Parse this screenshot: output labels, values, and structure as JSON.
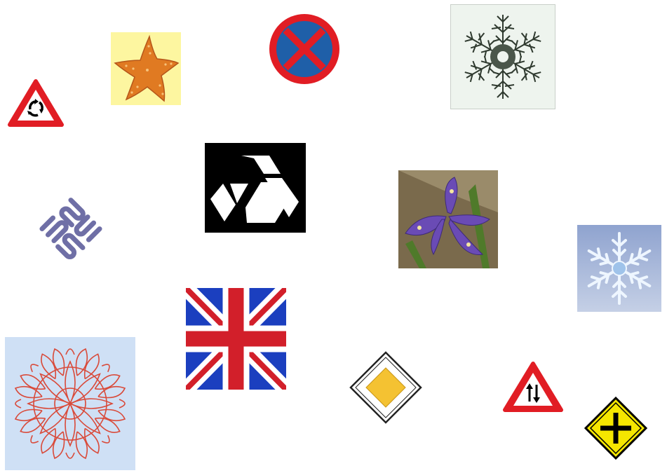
{
  "collage": {
    "items": [
      {
        "id": "roundabout-sign",
        "icon": "roundabout-warning-icon",
        "kind": "road-sign"
      },
      {
        "id": "starfish",
        "icon": "starfish-icon",
        "kind": "photo",
        "background": "#fdf6a0",
        "color": "#e07a22"
      },
      {
        "id": "no-stopping-sign",
        "icon": "no-stopping-icon",
        "kind": "road-sign",
        "colors": [
          "#e11d24",
          "#1f5fa8"
        ]
      },
      {
        "id": "fractal-snowflake",
        "icon": "fractal-flake-icon",
        "kind": "pattern",
        "background": "#eef4ee"
      },
      {
        "id": "sun-logo",
        "icon": "sun-logo-icon",
        "kind": "logo",
        "color": "#6f6fa6"
      },
      {
        "id": "natwest-logo",
        "icon": "interlocked-hexagon-logo-icon",
        "kind": "logo",
        "background": "#000000"
      },
      {
        "id": "iris-flower",
        "icon": "iris-flower-icon",
        "kind": "photo",
        "color": "#6a4bb5"
      },
      {
        "id": "ice-snowflake",
        "icon": "snowflake-icon",
        "kind": "pattern",
        "background": "#a9b8d8"
      },
      {
        "id": "union-jack",
        "icon": "union-jack-flag-icon",
        "kind": "flag",
        "colors": [
          "#1b3fbf",
          "#d21f2a",
          "#ffffff"
        ]
      },
      {
        "id": "priority-road-sign",
        "icon": "priority-road-icon",
        "kind": "road-sign",
        "color": "#f4c232"
      },
      {
        "id": "celtic-knot",
        "icon": "knot-pattern-icon",
        "kind": "pattern",
        "background": "#cfe0f5",
        "color": "#d94a3a"
      },
      {
        "id": "two-way-traffic-sign",
        "icon": "two-way-traffic-icon",
        "kind": "road-sign"
      },
      {
        "id": "crossroads-sign",
        "icon": "crossroads-warning-icon",
        "kind": "road-sign",
        "color": "#f5e600"
      }
    ]
  }
}
